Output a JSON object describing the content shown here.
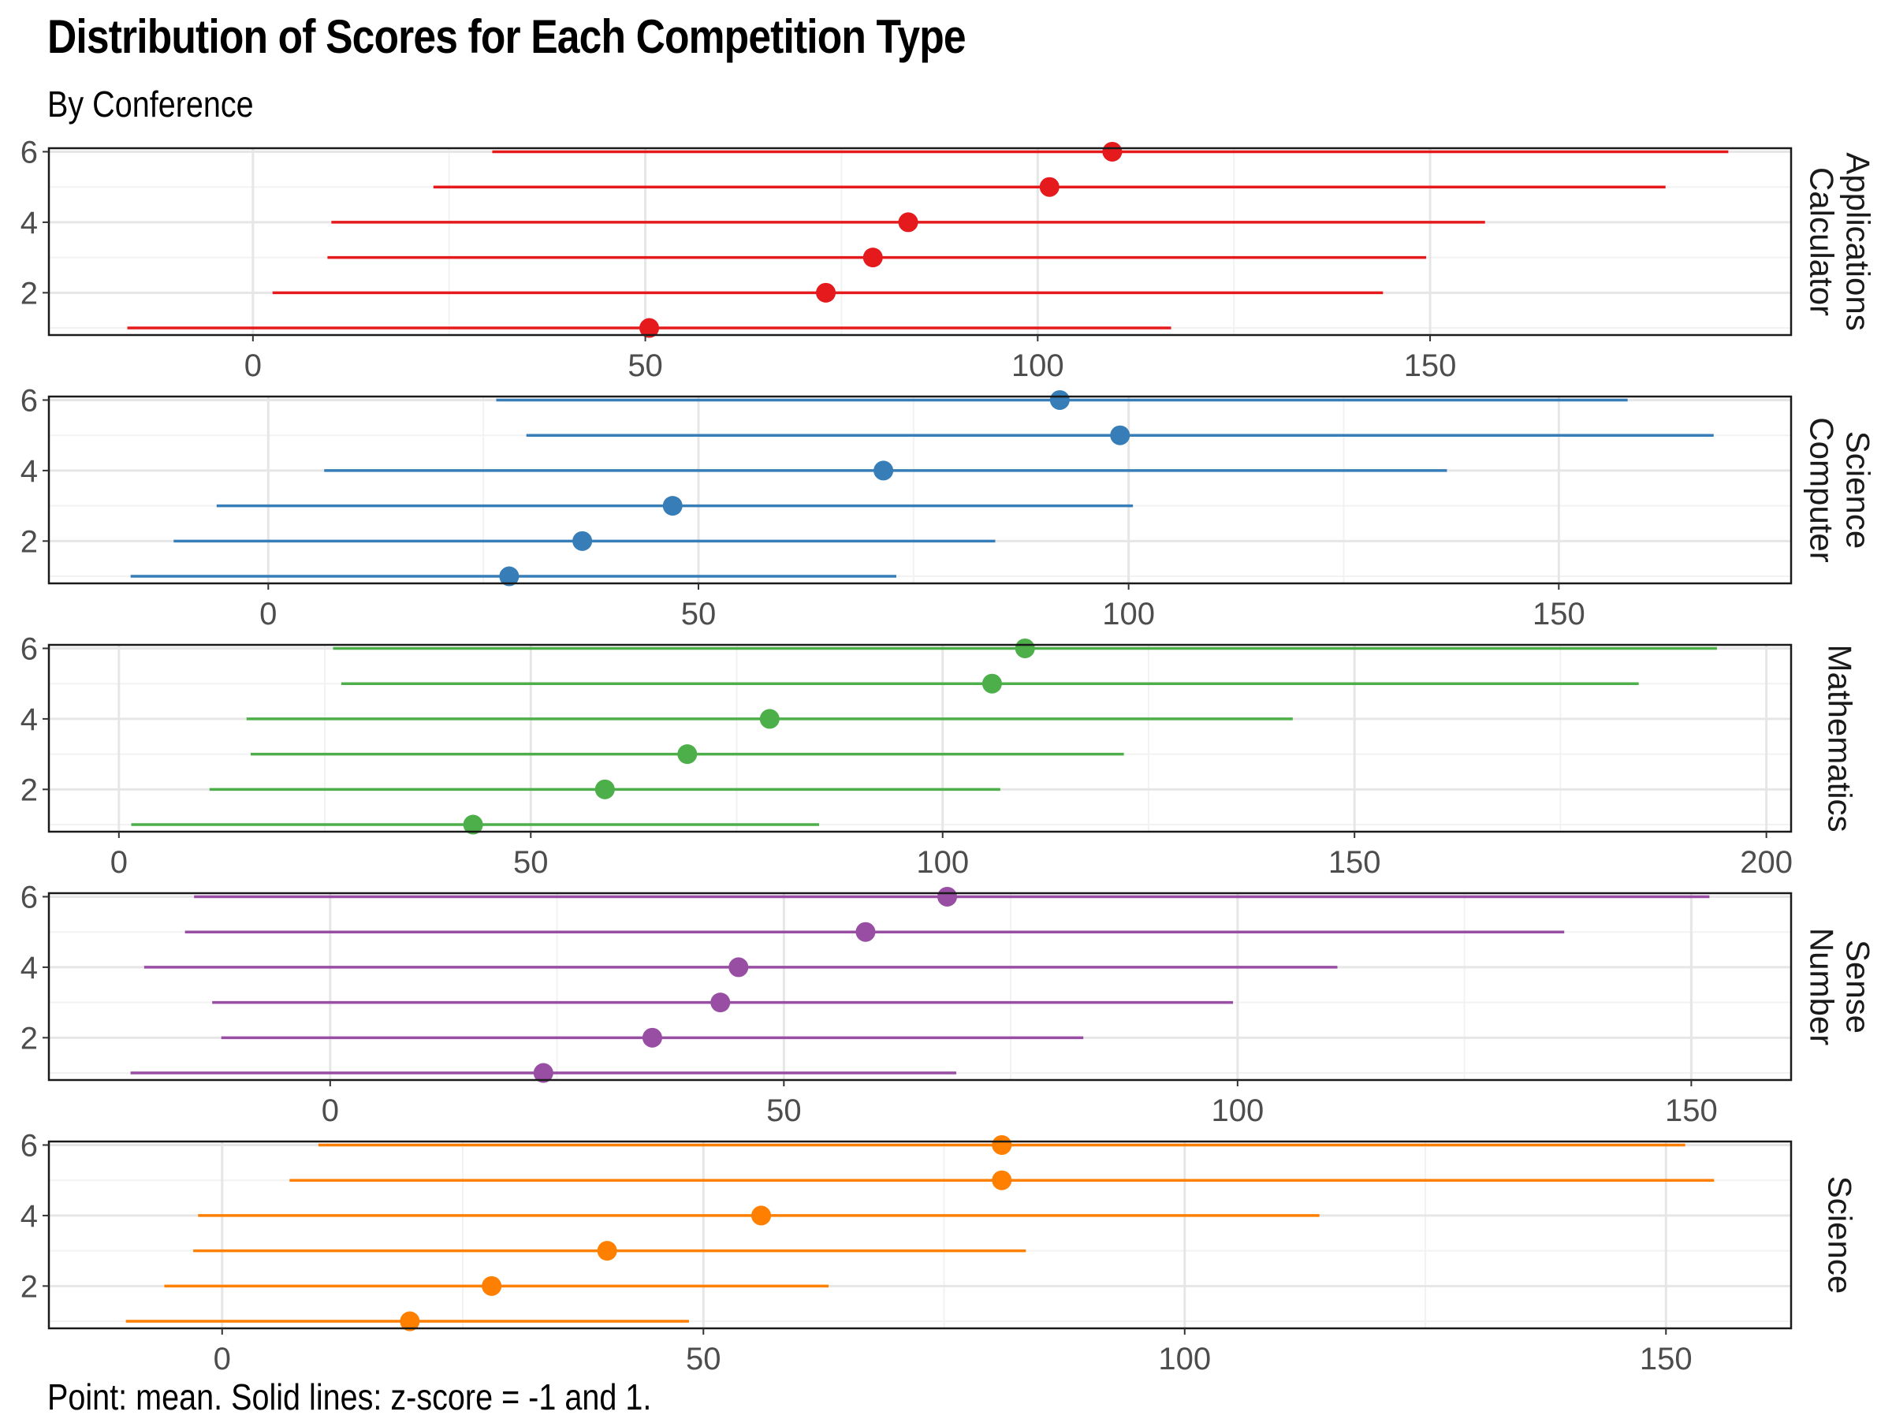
{
  "title": "Distribution of Scores for Each Competition Type",
  "subtitle": "By Conference",
  "caption": "Point: mean. Solid lines: z-score = -1 and 1.",
  "chart_data": {
    "type": "dot-range",
    "facets": [
      {
        "name": "Calculator Applications",
        "strip_lines": [
          "Calculator",
          "Applications"
        ],
        "color": "#E41A1C",
        "x_ticks": [
          0,
          50,
          100,
          150
        ],
        "xlim": [
          -26,
          196
        ],
        "y_ticks": [
          2,
          4,
          6
        ],
        "ylim": [
          0.8,
          6.1
        ],
        "rows": [
          {
            "conference": 1,
            "low": -16,
            "mean": 50.5,
            "high": 117
          },
          {
            "conference": 2,
            "low": 2.5,
            "mean": 73,
            "high": 144
          },
          {
            "conference": 3,
            "low": 9.5,
            "mean": 79,
            "high": 149.5
          },
          {
            "conference": 4,
            "low": 10,
            "mean": 83.5,
            "high": 157
          },
          {
            "conference": 5,
            "low": 23,
            "mean": 101.5,
            "high": 180
          },
          {
            "conference": 6,
            "low": 30.5,
            "mean": 109.5,
            "high": 188
          }
        ]
      },
      {
        "name": "Computer Science",
        "strip_lines": [
          "Computer",
          "Science"
        ],
        "color": "#377EB8",
        "x_ticks": [
          0,
          50,
          100,
          150
        ],
        "xlim": [
          -25.5,
          177
        ],
        "y_ticks": [
          2,
          4,
          6
        ],
        "ylim": [
          0.8,
          6.1
        ],
        "rows": [
          {
            "conference": 1,
            "low": -16,
            "mean": 28,
            "high": 73
          },
          {
            "conference": 2,
            "low": -11,
            "mean": 36.5,
            "high": 84.5
          },
          {
            "conference": 3,
            "low": -6,
            "mean": 47,
            "high": 100.5
          },
          {
            "conference": 4,
            "low": 6.5,
            "mean": 71.5,
            "high": 137
          },
          {
            "conference": 5,
            "low": 30,
            "mean": 99,
            "high": 168
          },
          {
            "conference": 6,
            "low": 26.5,
            "mean": 92,
            "high": 158
          }
        ]
      },
      {
        "name": "Mathematics",
        "strip_lines": [
          "Mathematics"
        ],
        "color": "#4DAF4A",
        "x_ticks": [
          0,
          50,
          100,
          150,
          200
        ],
        "xlim": [
          -8.5,
          203
        ],
        "y_ticks": [
          2,
          4,
          6
        ],
        "ylim": [
          0.8,
          6.1
        ],
        "rows": [
          {
            "conference": 1,
            "low": 1.5,
            "mean": 43,
            "high": 85
          },
          {
            "conference": 2,
            "low": 11,
            "mean": 59,
            "high": 107
          },
          {
            "conference": 3,
            "low": 16,
            "mean": 69,
            "high": 122
          },
          {
            "conference": 4,
            "low": 15.5,
            "mean": 79,
            "high": 142.5
          },
          {
            "conference": 5,
            "low": 27,
            "mean": 106,
            "high": 184.5
          },
          {
            "conference": 6,
            "low": 26,
            "mean": 110,
            "high": 194
          }
        ]
      },
      {
        "name": "Number Sense",
        "strip_lines": [
          "Number",
          "Sense"
        ],
        "color": "#984EA3",
        "x_ticks": [
          0,
          50,
          100,
          150
        ],
        "xlim": [
          -31,
          161
        ],
        "y_ticks": [
          2,
          4,
          6
        ],
        "ylim": [
          0.8,
          6.1
        ],
        "rows": [
          {
            "conference": 1,
            "low": -22,
            "mean": 23.5,
            "high": 69
          },
          {
            "conference": 2,
            "low": -12,
            "mean": 35.5,
            "high": 83
          },
          {
            "conference": 3,
            "low": -13,
            "mean": 43,
            "high": 99.5
          },
          {
            "conference": 4,
            "low": -20.5,
            "mean": 45,
            "high": 111
          },
          {
            "conference": 5,
            "low": -16,
            "mean": 59,
            "high": 136
          },
          {
            "conference": 6,
            "low": -15,
            "mean": 68,
            "high": 152
          }
        ]
      },
      {
        "name": "Science",
        "strip_lines": [
          "Science"
        ],
        "color": "#FF7F00",
        "x_ticks": [
          0,
          50,
          100,
          150
        ],
        "xlim": [
          -18,
          163
        ],
        "y_ticks": [
          2,
          4,
          6
        ],
        "ylim": [
          0.8,
          6.1
        ],
        "rows": [
          {
            "conference": 1,
            "low": -10,
            "mean": 19.5,
            "high": 48.5
          },
          {
            "conference": 2,
            "low": -6,
            "mean": 28,
            "high": 63
          },
          {
            "conference": 3,
            "low": -3,
            "mean": 40,
            "high": 83.5
          },
          {
            "conference": 4,
            "low": -2.5,
            "mean": 56,
            "high": 114
          },
          {
            "conference": 5,
            "low": 7,
            "mean": 81,
            "high": 155
          },
          {
            "conference": 6,
            "low": 10,
            "mean": 81,
            "high": 152
          }
        ]
      }
    ]
  }
}
